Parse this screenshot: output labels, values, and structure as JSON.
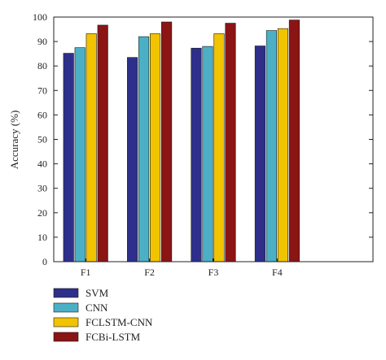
{
  "chart_data": {
    "type": "bar",
    "title": "",
    "xlabel": "",
    "ylabel": "Accuracy (%)",
    "ylim": [
      0,
      100
    ],
    "yticks": [
      0,
      10,
      20,
      30,
      40,
      50,
      60,
      70,
      80,
      90,
      100
    ],
    "categories": [
      "F1",
      "F2",
      "F3",
      "F4"
    ],
    "x_extra_slots": 1,
    "grid": false,
    "legend_position": "below",
    "series": [
      {
        "name": "SVM",
        "color": "#2e2f8a",
        "values": [
          85.2,
          83.5,
          87.3,
          88.2
        ]
      },
      {
        "name": "CNN",
        "color": "#4bb0c6",
        "values": [
          87.5,
          92.0,
          88.0,
          94.5
        ]
      },
      {
        "name": "FCLSTM-CNN",
        "color": "#f2c300",
        "values": [
          93.2,
          93.2,
          93.2,
          95.3
        ]
      },
      {
        "name": "FCBi-LSTM",
        "color": "#8b1414",
        "values": [
          96.7,
          98.0,
          97.5,
          98.8
        ]
      }
    ]
  }
}
